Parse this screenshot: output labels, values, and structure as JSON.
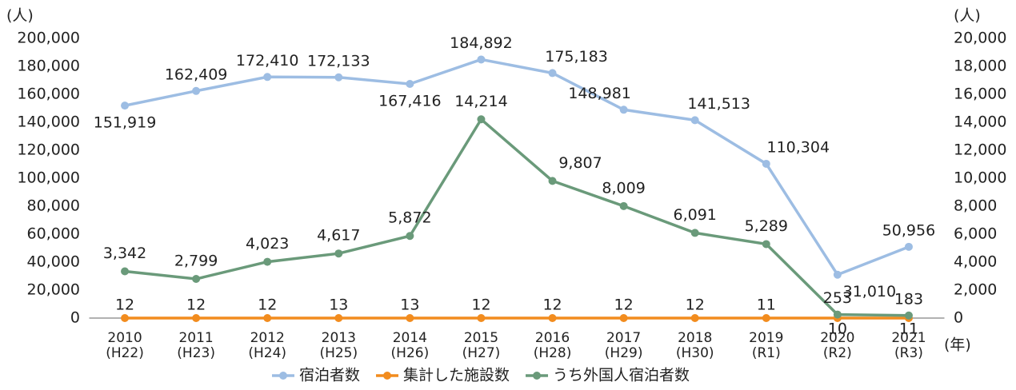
{
  "chart_data": {
    "type": "line",
    "y_label": "(人)",
    "y2_label": "(人)",
    "x_label": "(年)",
    "categories": [
      "2010\n(H22)",
      "2011\n(H23)",
      "2012\n(H24)",
      "2013\n(H25)",
      "2014\n(H26)",
      "2015\n(H27)",
      "2016\n(H28)",
      "2017\n(H29)",
      "2018\n(H30)",
      "2019\n(R1)",
      "2020\n(R2)",
      "2021\n(R3)"
    ],
    "series": [
      {
        "name": "宿泊者数",
        "color": "#9dbde3",
        "axis": "y",
        "values": [
          151919,
          162409,
          172410,
          172133,
          167416,
          184892,
          175183,
          148981,
          141513,
          110304,
          31010,
          50956
        ],
        "value_labels": [
          "151,919",
          "162,409",
          "172,410",
          "172,133",
          "167,416",
          "184,892",
          "175,183",
          "148,981",
          "141,513",
          "110,304",
          "31,010",
          "50,956"
        ]
      },
      {
        "name": "集計した施設数",
        "color": "#f28c1e",
        "axis": "y",
        "values": [
          12,
          12,
          12,
          13,
          13,
          12,
          12,
          12,
          12,
          11,
          10,
          11
        ]
      },
      {
        "name": "うち外国人宿泊者数",
        "color": "#6a9a7a",
        "axis": "y2",
        "values": [
          3342,
          2799,
          4023,
          4617,
          5872,
          14214,
          9807,
          8009,
          6091,
          5289,
          253,
          183
        ],
        "value_labels": [
          "3,342",
          "2,799",
          "4,023",
          "4,617",
          "5,872",
          "14,214",
          "9,807",
          "8,009",
          "6,091",
          "5,289",
          "253",
          "183"
        ]
      }
    ],
    "ylim": [
      0,
      200000
    ],
    "yticks": [
      0,
      {
        "value": 20000,
        "label": "20,000"
      },
      {
        "value": 40000,
        "label": "40,000"
      },
      {
        "value": 60000,
        "label": "60,000"
      },
      {
        "value": 80000,
        "label": "80,000"
      },
      {
        "value": 100000,
        "label": "100,000"
      },
      {
        "value": 120000,
        "label": "120,000"
      },
      {
        "value": 140000,
        "label": "140,000"
      },
      {
        "value": 160000,
        "label": "160,000"
      },
      {
        "value": 180000,
        "label": "180,000"
      },
      {
        "value": 200000,
        "label": "200,000"
      }
    ],
    "y2lim": [
      0,
      20000
    ],
    "y2ticks": [
      0,
      {
        "value": 2000,
        "label": "2,000"
      },
      {
        "value": 4000,
        "label": "4,000"
      },
      {
        "value": 6000,
        "label": "6,000"
      },
      {
        "value": 8000,
        "label": "8,000"
      },
      {
        "value": 10000,
        "label": "10,000"
      },
      {
        "value": 12000,
        "label": "12,000"
      },
      {
        "value": 14000,
        "label": "14,000"
      },
      {
        "value": 16000,
        "label": "16,000"
      },
      {
        "value": 18000,
        "label": "18,000"
      },
      {
        "value": 20000,
        "label": "20,000"
      }
    ],
    "grid": false,
    "legend": "bottom"
  }
}
